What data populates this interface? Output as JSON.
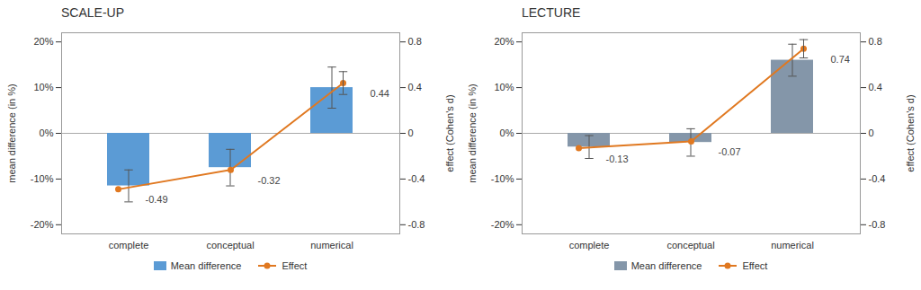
{
  "chart_data": [
    {
      "type": "bar",
      "title": "SCALE-UP",
      "categories": [
        "complete",
        "conceptual",
        "numerical"
      ],
      "ylabel": "mean difference (in %)",
      "y2label": "effect (Cohen's d)",
      "ylim": [
        -0.22,
        0.22
      ],
      "yticks": [
        {
          "value": -0.2,
          "label": "-20%"
        },
        {
          "value": -0.1,
          "label": "-10%"
        },
        {
          "value": 0,
          "label": "0%"
        },
        {
          "value": 0.1,
          "label": "10%"
        },
        {
          "value": 0.2,
          "label": "20%"
        }
      ],
      "y2lim": [
        -0.88,
        0.88
      ],
      "y2ticks": [
        -0.8,
        -0.4,
        0,
        0.4,
        0.8
      ],
      "grid": false,
      "legend": "bottom",
      "series": [
        {
          "name": "Mean difference",
          "type": "bar",
          "color": "#5B9BD5",
          "values": [
            -0.115,
            -0.075,
            0.1
          ],
          "errors": [
            0.035,
            0.04,
            0.045
          ]
        },
        {
          "name": "Effect",
          "type": "line",
          "axis": "y2",
          "color": "#E07820",
          "marker": "circle",
          "values": [
            -0.49,
            -0.32,
            0.44
          ],
          "errors": [
            0.0,
            0.0,
            0.1
          ],
          "data_labels": true
        }
      ]
    },
    {
      "type": "bar",
      "title": "LECTURE",
      "categories": [
        "complete",
        "conceptual",
        "numerical"
      ],
      "ylabel": "mean difference (in %)",
      "y2label": "effect (Cohen's d)",
      "ylim": [
        -0.22,
        0.22
      ],
      "yticks": [
        {
          "value": -0.2,
          "label": "-20%"
        },
        {
          "value": -0.1,
          "label": "-10%"
        },
        {
          "value": 0,
          "label": "0%"
        },
        {
          "value": 0.1,
          "label": "10%"
        },
        {
          "value": 0.2,
          "label": "20%"
        }
      ],
      "y2lim": [
        -0.88,
        0.88
      ],
      "y2ticks": [
        -0.8,
        -0.4,
        0,
        0.4,
        0.8
      ],
      "grid": false,
      "legend": "bottom",
      "series": [
        {
          "name": "Mean difference",
          "type": "bar",
          "color": "#8496A9",
          "values": [
            -0.03,
            -0.02,
            0.16
          ],
          "errors": [
            0.025,
            0.03,
            0.035
          ]
        },
        {
          "name": "Effect",
          "type": "line",
          "axis": "y2",
          "color": "#E07820",
          "marker": "circle",
          "values": [
            -0.13,
            -0.07,
            0.74
          ],
          "errors": [
            0.0,
            0.0,
            0.08
          ],
          "data_labels": true
        }
      ]
    }
  ]
}
